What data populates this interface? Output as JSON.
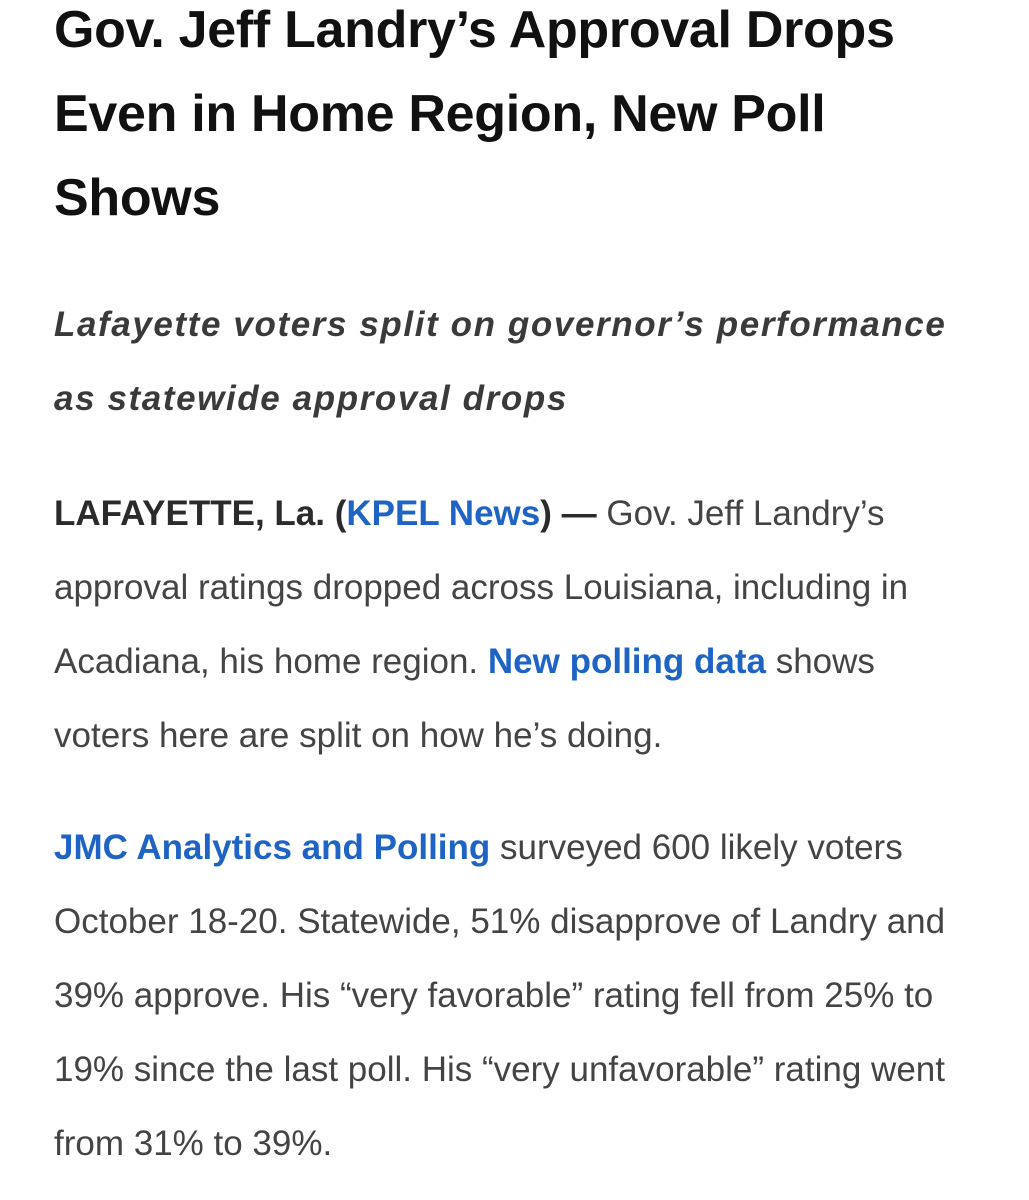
{
  "article": {
    "headline": "Gov. Jeff Landry’s Approval Drops Even in Home Region, New Poll Shows",
    "subheadline": "Lafayette voters split on governor’s performance as statewide approval drops",
    "para1": {
      "dateline": "LAFAYETTE, La. (",
      "source_link": "KPEL News",
      "dateline_close": ") —",
      "text_a": " Gov. Jeff Landry’s approval ratings dropped across Louisiana, including in Acadiana, his home region. ",
      "polling_link": "New polling data",
      "text_b": " shows voters here are split on how he’s doing."
    },
    "para2": {
      "pollster_link": "JMC Analytics and Polling",
      "text": " surveyed 600 likely voters October 18-20. Statewide, 51% disapprove of Landry and 39% approve. His “very favorable” rating fell from 25% to 19% since the last poll. His “very unfavorable” rating went from 31% to 39%."
    }
  },
  "colors": {
    "link": "#1f63c4",
    "headline": "#111111",
    "body": "#444444"
  }
}
